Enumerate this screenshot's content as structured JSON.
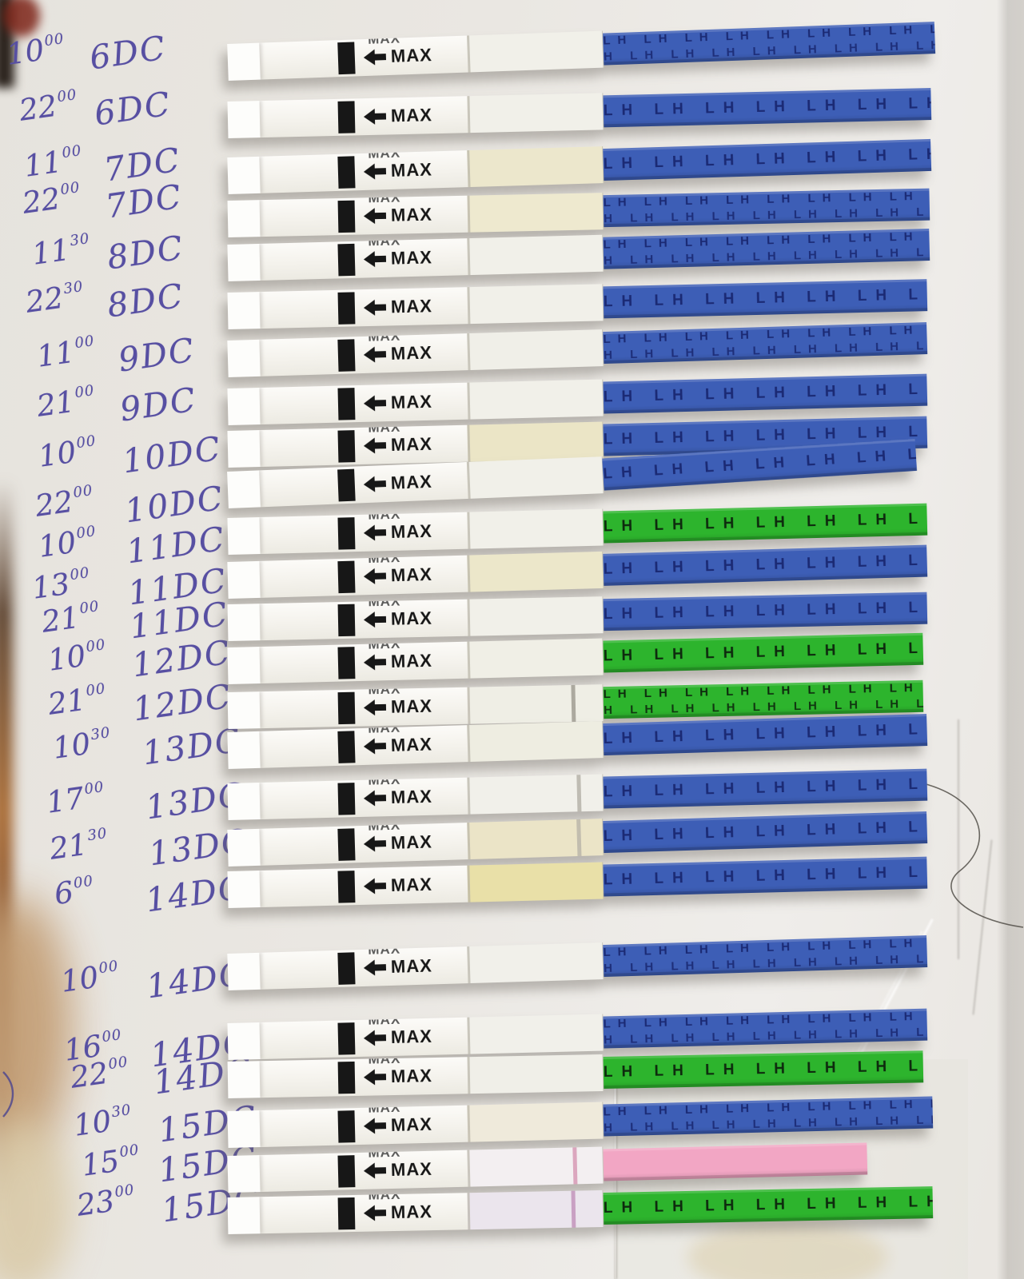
{
  "board": {
    "color": "#e9e6e1",
    "ink_color": "#574fa2"
  },
  "strip_print": {
    "max_label": "MAX",
    "lh_label": "LH"
  },
  "handle_colors": {
    "blue": {
      "fill": "#3d5eb6",
      "text": "#1b2a74"
    },
    "green": {
      "fill": "#2db42d",
      "text": "#0e2a0e"
    },
    "pink": {
      "fill": "#f2a6c4",
      "text": ""
    }
  },
  "rows": [
    {
      "time_h": "10",
      "time_m": "00",
      "day": "6DC",
      "handle": "blue",
      "window": "#f1f0e9",
      "line": null,
      "double_max": true,
      "lh_rows": 2,
      "len": 885
    },
    {
      "time_h": "22",
      "time_m": "00",
      "day": "6DC",
      "handle": "blue",
      "window": "#f1f0e9",
      "line": null,
      "double_max": false,
      "lh_rows": 1,
      "len": 880
    },
    {
      "time_h": "11",
      "time_m": "00",
      "day": "7DC",
      "handle": "blue",
      "window": "#ece7cc",
      "line": null,
      "double_max": true,
      "lh_rows": 1,
      "len": 880
    },
    {
      "time_h": "22",
      "time_m": "00",
      "day": "7DC",
      "handle": "blue",
      "window": "#eee9cf",
      "line": null,
      "double_max": true,
      "lh_rows": 2,
      "len": 878
    },
    {
      "time_h": "11",
      "time_m": "30",
      "day": "8DC",
      "handle": "blue",
      "window": "#f1f0e9",
      "line": null,
      "double_max": true,
      "lh_rows": 2,
      "len": 878
    },
    {
      "time_h": "22",
      "time_m": "30",
      "day": "8DC",
      "handle": "blue",
      "window": "#f1f0e9",
      "line": null,
      "double_max": false,
      "lh_rows": 1,
      "len": 875
    },
    {
      "time_h": "11",
      "time_m": "00",
      "day": "9DC",
      "handle": "blue",
      "window": "#f0efe8",
      "line": null,
      "double_max": true,
      "lh_rows": 2,
      "len": 875
    },
    {
      "time_h": "21",
      "time_m": "00",
      "day": "9DC",
      "handle": "blue",
      "window": "#f1f0e9",
      "line": null,
      "double_max": false,
      "lh_rows": 1,
      "len": 875
    },
    {
      "time_h": "10",
      "time_m": "00",
      "day": "10DC",
      "handle": "blue",
      "window": "#ebe5c6",
      "line": null,
      "double_max": true,
      "lh_rows": 1,
      "len": 875
    },
    {
      "time_h": "22",
      "time_m": "00",
      "day": "10DC",
      "handle": "blue",
      "window": "#f1f0e9",
      "line": null,
      "double_max": false,
      "lh_rows": 1,
      "len": 862
    },
    {
      "time_h": "10",
      "time_m": "00",
      "day": "11DC",
      "handle": "green",
      "window": "#f1f0e9",
      "line": null,
      "double_max": true,
      "lh_rows": 1,
      "len": 875
    },
    {
      "time_h": "13",
      "time_m": "00",
      "day": "11DC",
      "handle": "blue",
      "window": "#ece7ca",
      "line": null,
      "double_max": true,
      "lh_rows": 1,
      "len": 875
    },
    {
      "time_h": "21",
      "time_m": "00",
      "day": "11DC",
      "handle": "blue",
      "window": "#f1f0e9",
      "line": null,
      "double_max": true,
      "lh_rows": 1,
      "len": 875
    },
    {
      "time_h": "10",
      "time_m": "00",
      "day": "12DC",
      "handle": "green",
      "window": "#f0efe6",
      "line": null,
      "double_max": true,
      "lh_rows": 1,
      "len": 870
    },
    {
      "time_h": "21",
      "time_m": "00",
      "day": "12DC",
      "handle": "green",
      "window": "#efeee5",
      "line": {
        "color": "#9b978d",
        "pos": 430
      },
      "double_max": true,
      "lh_rows": 2,
      "len": 870
    },
    {
      "time_h": "10",
      "time_m": "30",
      "day": "13DC",
      "handle": "blue",
      "window": "#eeede1",
      "line": null,
      "double_max": true,
      "lh_rows": 1,
      "len": 875
    },
    {
      "time_h": "17",
      "time_m": "00",
      "day": "13DC",
      "handle": "blue",
      "window": "#f1f0ea",
      "line": {
        "color": "#b3afa5",
        "pos": 437
      },
      "double_max": true,
      "lh_rows": 1,
      "len": 875
    },
    {
      "time_h": "21",
      "time_m": "30",
      "day": "13DC",
      "handle": "blue",
      "window": "#ebe4c7",
      "line": {
        "color": "#b8b3a7",
        "pos": 437
      },
      "double_max": true,
      "lh_rows": 1,
      "len": 875
    },
    {
      "time_h": "6",
      "time_m": "00",
      "day": "14DC",
      "handle": "blue",
      "window": "#e9e0a8",
      "line": null,
      "double_max": false,
      "lh_rows": 1,
      "len": 875
    },
    {
      "time_h": "10",
      "time_m": "00",
      "day": "14DC",
      "handle": "blue",
      "window": "#f1f0ea",
      "line": null,
      "double_max": true,
      "lh_rows": 2,
      "len": 875
    },
    {
      "time_h": "16",
      "time_m": "00",
      "day": "14DC",
      "handle": "blue",
      "window": "#f1f0ea",
      "line": null,
      "double_max": true,
      "lh_rows": 2,
      "len": 875
    },
    {
      "time_h": "22",
      "time_m": "00",
      "day": "14DC",
      "handle": "green",
      "window": "#f0efe8",
      "line": null,
      "double_max": true,
      "lh_rows": 1,
      "len": 870
    },
    {
      "time_h": "10",
      "time_m": "30",
      "day": "15DC",
      "handle": "blue",
      "window": "#efeadb",
      "line": null,
      "double_max": true,
      "lh_rows": 2,
      "len": 882
    },
    {
      "time_h": "15",
      "time_m": "00",
      "day": "15DC",
      "handle": "pink",
      "window": "#f3eff1",
      "line": {
        "color": "#d494b2",
        "pos": 432
      },
      "double_max": true,
      "lh_rows": 1,
      "len": 800
    },
    {
      "time_h": "23",
      "time_m": "00",
      "day": "15DC",
      "handle": "green",
      "window": "#ebe5ed",
      "line": {
        "color": "#c08fb8",
        "pos": 430
      },
      "double_max": true,
      "lh_rows": 1,
      "len": 882
    }
  ]
}
